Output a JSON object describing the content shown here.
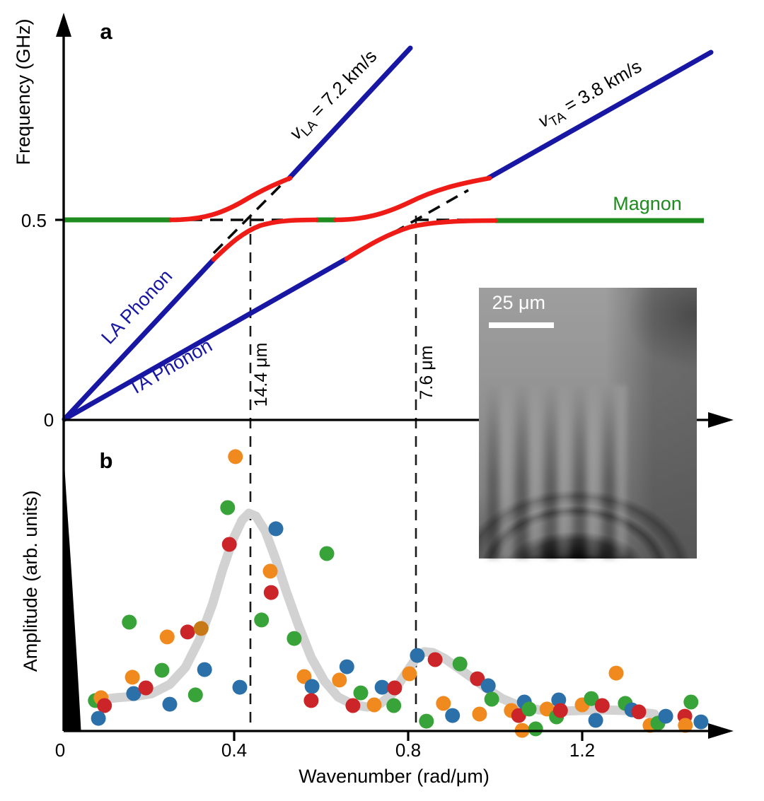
{
  "panel_a": {
    "panel_letter": "a",
    "y_axis_label": "Frequency (GHz)",
    "y_tick_05": "0.5",
    "origin_label": "0",
    "magnon_label": "Magnon",
    "la_phonon_label": "LA Phonon",
    "ta_phonon_label": "TA Phonon",
    "la_velocity_label": {
      "v": "v",
      "sub": "LA",
      "rest": " = 7.2 km/s"
    },
    "ta_velocity_label": {
      "v": "v",
      "sub": "TA",
      "rest": " = 3.8 km/s"
    },
    "crossing1_label": "14.4 μm",
    "crossing2_label": "7.6 μm",
    "inset": {
      "scale_bar_label": "25 μm"
    }
  },
  "panel_b": {
    "panel_letter": "b",
    "y_axis_label": "Amplitude (arb. units)",
    "x_axis_label": "Wavenumber (rad/μm)",
    "origin_label": "0"
  },
  "colors": {
    "phonon_blue": "#1717a3",
    "magnon_green": "#1e8c1e",
    "hybrid_red": "#ee1b17",
    "fit_gray": "#d2d2d2",
    "dot_palette": {
      "blue": "#2c70a9",
      "orange": "#f18a1e",
      "green": "#38a338",
      "red": "#cc2529",
      "orange_dark": "#c87917"
    }
  },
  "chart_data": [
    {
      "panel": "a",
      "type": "line",
      "title": "Magnon-phonon dispersion with anticrossings",
      "xlabel": "Wavenumber (rad/μm)",
      "ylabel": "Frequency (GHz)",
      "y_ticks": [
        0,
        0.5
      ],
      "magnon_frequency_GHz": 0.5,
      "series": [
        {
          "name": "LA Phonon",
          "slope_km_s": 7.2
        },
        {
          "name": "TA Phonon",
          "slope_km_s": 3.8
        },
        {
          "name": "Magnon",
          "frequency_GHz": 0.5
        }
      ],
      "anticrossings": [
        {
          "wavelength_um": 14.4,
          "k_rad_um": 0.437
        },
        {
          "wavelength_um": 7.6,
          "k_rad_um": 0.818
        }
      ]
    },
    {
      "panel": "b",
      "type": "scatter",
      "title": "FFT amplitude vs wavenumber",
      "xlabel": "Wavenumber (rad/μm)",
      "ylabel": "Amplitude (arb. units)",
      "x_ticks": [
        0,
        0.4,
        0.8,
        1.2
      ],
      "xlim": [
        0,
        1.55
      ],
      "peaks_k": [
        0.437,
        0.84
      ],
      "points": [
        [
          0.081,
          0.14,
          "green"
        ],
        [
          0.094,
          0.153,
          "orange"
        ],
        [
          0.102,
          0.117,
          "red"
        ],
        [
          0.088,
          0.058,
          "blue"
        ],
        [
          0.159,
          0.5,
          "green"
        ],
        [
          0.166,
          0.247,
          "orange"
        ],
        [
          0.169,
          0.172,
          "blue"
        ],
        [
          0.197,
          0.198,
          "red"
        ],
        [
          0.234,
          0.279,
          "green"
        ],
        [
          0.246,
          0.432,
          "orange"
        ],
        [
          0.252,
          0.123,
          "blue"
        ],
        [
          0.293,
          0.455,
          "red"
        ],
        [
          0.311,
          0.166,
          "green"
        ],
        [
          0.324,
          0.471,
          "orange_dark"
        ],
        [
          0.332,
          0.282,
          "blue"
        ],
        [
          0.385,
          1.026,
          "green"
        ],
        [
          0.389,
          0.857,
          "red"
        ],
        [
          0.403,
          1.26,
          "orange"
        ],
        [
          0.413,
          0.201,
          "blue"
        ],
        [
          0.463,
          0.51,
          "green"
        ],
        [
          0.483,
          0.734,
          "orange"
        ],
        [
          0.485,
          0.636,
          "red"
        ],
        [
          0.496,
          0.929,
          "blue"
        ],
        [
          0.538,
          0.425,
          "green"
        ],
        [
          0.561,
          0.25,
          "orange"
        ],
        [
          0.579,
          0.205,
          "blue"
        ],
        [
          0.577,
          0.14,
          "red"
        ],
        [
          0.613,
          0.815,
          "green"
        ],
        [
          0.642,
          0.234,
          "orange"
        ],
        [
          0.659,
          0.295,
          "blue"
        ],
        [
          0.673,
          0.117,
          "red"
        ],
        [
          0.691,
          0.175,
          "green"
        ],
        [
          0.722,
          0.12,
          "orange"
        ],
        [
          0.74,
          0.201,
          "blue"
        ],
        [
          0.767,
          0.117,
          "green"
        ],
        [
          0.769,
          0.198,
          "red"
        ],
        [
          0.803,
          0.263,
          "orange"
        ],
        [
          0.821,
          0.347,
          "blue"
        ],
        [
          0.842,
          0.045,
          "green"
        ],
        [
          0.862,
          0.328,
          "red"
        ],
        [
          0.881,
          0.127,
          "orange"
        ],
        [
          0.902,
          0.071,
          "blue"
        ],
        [
          0.919,
          0.308,
          "green"
        ],
        [
          0.959,
          0.24,
          "red"
        ],
        [
          0.964,
          0.078,
          "orange"
        ],
        [
          0.984,
          0.208,
          "blue"
        ],
        [
          0.992,
          0.146,
          "green"
        ],
        [
          1.037,
          0.094,
          "orange"
        ],
        [
          1.054,
          0.071,
          "red"
        ],
        [
          1.067,
          0.133,
          "blue"
        ],
        [
          1.078,
          0.101,
          "green"
        ],
        [
          1.062,
          0.003,
          "orange"
        ],
        [
          1.093,
          0.01,
          "green"
        ],
        [
          1.119,
          0.101,
          "orange"
        ],
        [
          1.141,
          0.065,
          "green"
        ],
        [
          1.146,
          0.143,
          "blue"
        ],
        [
          1.15,
          0.094,
          "red"
        ],
        [
          1.2,
          0.12,
          "orange"
        ],
        [
          1.221,
          0.149,
          "green"
        ],
        [
          1.231,
          0.049,
          "blue"
        ],
        [
          1.246,
          0.117,
          "red"
        ],
        [
          1.278,
          0.266,
          "orange"
        ],
        [
          1.299,
          0.127,
          "green"
        ],
        [
          1.314,
          0.097,
          "blue"
        ],
        [
          1.33,
          0.088,
          "red"
        ],
        [
          1.356,
          0.026,
          "orange"
        ],
        [
          1.374,
          0.036,
          "green"
        ],
        [
          1.392,
          0.068,
          "blue"
        ],
        [
          1.436,
          0.068,
          "red"
        ],
        [
          1.437,
          0.026,
          "orange"
        ],
        [
          1.45,
          0.133,
          "green"
        ],
        [
          1.473,
          0.042,
          "blue"
        ]
      ],
      "fit_curve": [
        [
          0.089,
          0.143
        ],
        [
          0.13,
          0.153
        ],
        [
          0.171,
          0.159
        ],
        [
          0.211,
          0.172
        ],
        [
          0.252,
          0.214
        ],
        [
          0.288,
          0.292
        ],
        [
          0.32,
          0.419
        ],
        [
          0.35,
          0.581
        ],
        [
          0.374,
          0.744
        ],
        [
          0.398,
          0.883
        ],
        [
          0.418,
          0.968
        ],
        [
          0.434,
          1.0
        ],
        [
          0.45,
          0.987
        ],
        [
          0.472,
          0.916
        ],
        [
          0.496,
          0.786
        ],
        [
          0.52,
          0.64
        ],
        [
          0.548,
          0.484
        ],
        [
          0.577,
          0.338
        ],
        [
          0.607,
          0.231
        ],
        [
          0.639,
          0.156
        ],
        [
          0.675,
          0.12
        ],
        [
          0.707,
          0.11
        ],
        [
          0.737,
          0.127
        ],
        [
          0.764,
          0.172
        ],
        [
          0.792,
          0.257
        ],
        [
          0.818,
          0.334
        ],
        [
          0.837,
          0.364
        ],
        [
          0.857,
          0.36
        ],
        [
          0.883,
          0.334
        ],
        [
          0.911,
          0.295
        ],
        [
          0.943,
          0.25
        ],
        [
          0.98,
          0.195
        ],
        [
          1.016,
          0.149
        ],
        [
          1.057,
          0.114
        ],
        [
          1.101,
          0.097
        ],
        [
          1.146,
          0.091
        ],
        [
          1.195,
          0.094
        ],
        [
          1.244,
          0.097
        ],
        [
          1.301,
          0.094
        ],
        [
          1.366,
          0.078
        ]
      ]
    }
  ]
}
